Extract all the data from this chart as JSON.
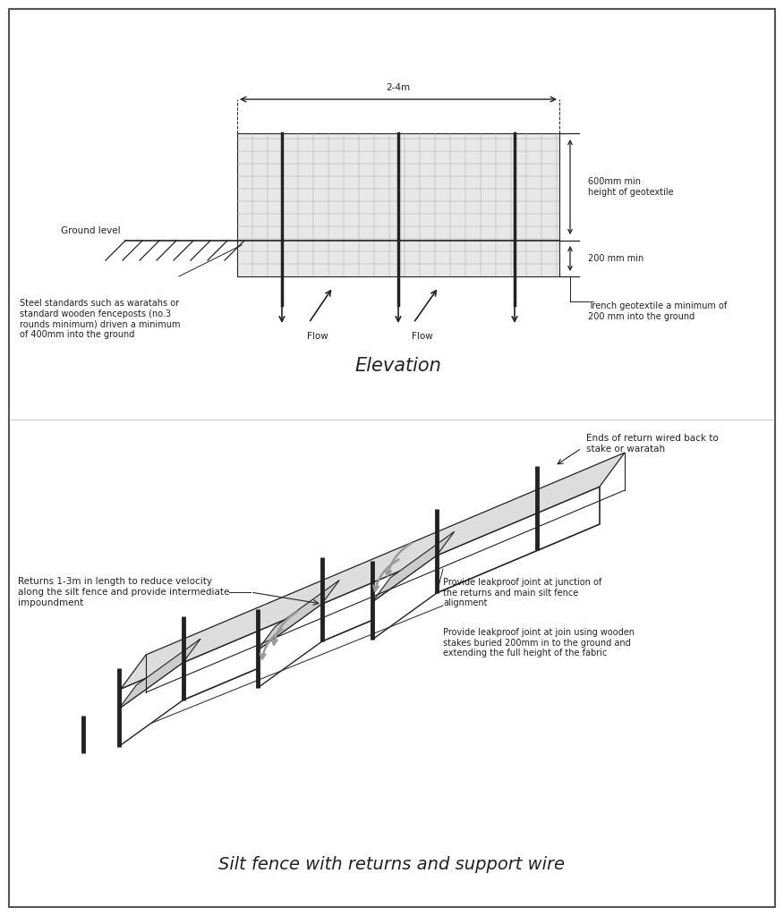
{
  "line_color": "#222222",
  "title_bottom": "Silt fence with returns and support wire",
  "title_elevation": "Elevation",
  "text_2_4m": "2-4m",
  "text_600mm": "600mm min\nheight of geotextile",
  "text_200mm": "200 mm min",
  "text_trench": "Trench geotextile a minimum of\n200 mm into the ground",
  "text_ground": "Ground level",
  "text_steel": "Steel standards such as waratahs or\nstandard wooden fenceposts (no.3\nrounds minimum) driven a minimum\nof 400mm into the ground",
  "text_flow1": "Flow",
  "text_flow2": "Flow",
  "text_returns": "Returns 1-3m in length to reduce velocity\nalong the silt fence and provide intermediate\nimpoundment",
  "text_ends": "Ends of return wired back to\nstake or waratah",
  "text_leakproof1": "Provide leakproof joint at junction of\nthe returns and main silt fence\nalignment",
  "text_leakproof2": "Provide leakproof joint at join using wooden\nstakes buried 200mm in to the ground and\nextending the full height of the fabric"
}
